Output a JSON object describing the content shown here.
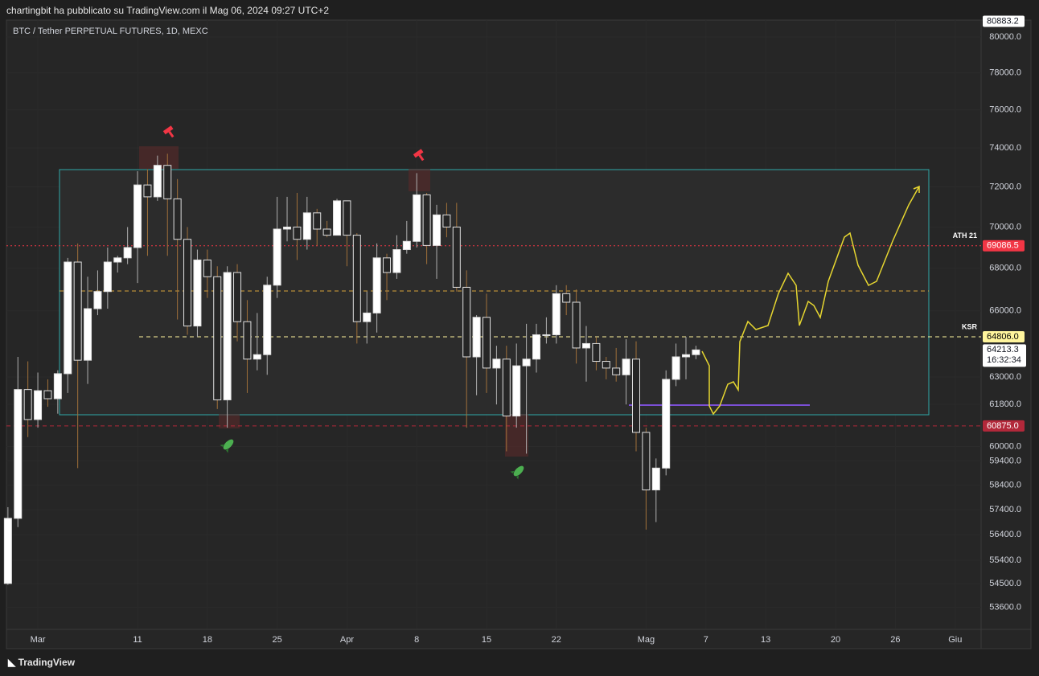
{
  "header": "chartingbit ha pubblicato su TradingView.com il Mag 06, 2024 09:27 UTC+2",
  "footer_logo": "TradingView",
  "chart_data": {
    "type": "candlestick",
    "title": "BTC / Tether PERPETUAL FUTURES, 1D, MEXC",
    "x": [
      -3,
      -2,
      -1,
      0,
      1,
      2,
      3,
      4,
      5,
      6,
      7,
      8,
      9,
      10,
      11,
      12,
      13,
      14,
      15,
      16,
      17,
      18,
      19,
      20,
      21,
      22,
      23,
      24,
      25,
      26,
      27,
      28,
      29,
      30,
      31,
      32,
      33,
      34,
      35,
      36,
      37,
      38,
      39,
      40,
      41,
      42,
      43,
      44,
      45,
      46,
      47,
      48,
      49,
      50,
      51,
      52,
      53,
      54,
      55,
      56,
      57,
      58,
      59,
      60,
      61,
      62,
      63,
      64,
      65,
      66
    ],
    "open": [
      54500,
      57050,
      62450,
      61150,
      62400,
      62050,
      63150,
      68300,
      63750,
      66100,
      66900,
      68300,
      68500,
      69000,
      72100,
      71500,
      73100,
      71400,
      69400,
      65300,
      68400,
      67600,
      62000,
      67800,
      65500,
      63800,
      64000,
      67200,
      69900,
      70000,
      69400,
      70700,
      69900,
      69600,
      71300,
      69600,
      65500,
      65900,
      68500,
      67800,
      68900,
      69300,
      71600,
      69100,
      70600,
      70000,
      67100,
      63900,
      65700,
      63400,
      63800,
      61300,
      63500,
      63800,
      64900,
      64900,
      66800,
      66400,
      64300,
      64500,
      63700,
      63400,
      63100,
      63800,
      60600,
      58200,
      59100,
      62900,
      63900,
      64000
    ],
    "high": [
      57500,
      63900,
      63700,
      63200,
      62900,
      63300,
      68500,
      69200,
      67600,
      67900,
      69000,
      68600,
      70000,
      72800,
      72900,
      73600,
      73700,
      72400,
      70000,
      68900,
      68900,
      68100,
      68100,
      68200,
      66500,
      65900,
      67600,
      71500,
      71500,
      71700,
      71500,
      70900,
      70300,
      71400,
      71300,
      69700,
      66900,
      69200,
      68700,
      69600,
      70300,
      72700,
      71700,
      71100,
      71200,
      71200,
      67900,
      65800,
      66800,
      64400,
      64400,
      64500,
      65400,
      65400,
      65700,
      67200,
      67200,
      67000,
      65300,
      64800,
      63900,
      64300,
      64700,
      64600,
      60800,
      59500,
      63300,
      64500,
      64800,
      64400
    ],
    "low": [
      54450,
      56700,
      60400,
      60800,
      61700,
      61400,
      62300,
      59100,
      62700,
      65800,
      66100,
      67800,
      68200,
      67300,
      68600,
      71300,
      68600,
      65600,
      64900,
      64800,
      66600,
      61600,
      60800,
      64600,
      62300,
      63300,
      63100,
      66600,
      69300,
      68400,
      68900,
      69100,
      69500,
      69600,
      68100,
      64500,
      64500,
      65000,
      66500,
      67500,
      68700,
      69000,
      68200,
      67500,
      69500,
      66900,
      60800,
      62200,
      62300,
      61800,
      59800,
      60800,
      59700,
      63200,
      64500,
      64500,
      65800,
      63600,
      62800,
      63300,
      62900,
      62800,
      61800,
      59800,
      56600,
      56900,
      58800,
      62600,
      62900,
      63800
    ],
    "close": [
      57050,
      62450,
      61150,
      62400,
      62050,
      63150,
      68300,
      63750,
      66100,
      66900,
      68300,
      68500,
      69000,
      72100,
      71500,
      73100,
      71400,
      69400,
      65300,
      68400,
      67600,
      62000,
      67800,
      65500,
      63800,
      64000,
      67200,
      69900,
      70000,
      69400,
      70700,
      69900,
      69600,
      71300,
      69600,
      65500,
      65900,
      68500,
      67800,
      68900,
      69300,
      71600,
      69100,
      70600,
      70000,
      67100,
      63900,
      65700,
      63400,
      63800,
      61300,
      63500,
      63800,
      64900,
      64900,
      66800,
      66400,
      64300,
      64500,
      63700,
      63400,
      63100,
      63800,
      60600,
      58200,
      59100,
      62900,
      63900,
      64000,
      64213.3
    ],
    "up_color": "#ffffff",
    "down_color": "#262626",
    "outline_color": "#e0e0e0",
    "wick_up_color": "#b0b0b0",
    "wick_down_color": "#a0703a",
    "log_scale": true,
    "grid": true,
    "xlim": [
      -3.15,
      94.6
    ],
    "xticks": [
      {
        "value": 0,
        "label": "Mar"
      },
      {
        "value": 10,
        "label": "11"
      },
      {
        "value": 17,
        "label": "18"
      },
      {
        "value": 24,
        "label": "25"
      },
      {
        "value": 31,
        "label": "Apr"
      },
      {
        "value": 38,
        "label": "8"
      },
      {
        "value": 45,
        "label": "15"
      },
      {
        "value": 52,
        "label": "22"
      },
      {
        "value": 61,
        "label": "Mag"
      },
      {
        "value": 67,
        "label": "7"
      },
      {
        "value": 73,
        "label": "13"
      },
      {
        "value": 80,
        "label": "20"
      },
      {
        "value": 86,
        "label": "26"
      },
      {
        "value": 92,
        "label": "Giu"
      }
    ],
    "ylim": [
      52800,
      80950
    ],
    "yticks": [
      {
        "value": 80000,
        "label": "80000.0"
      },
      {
        "value": 78000,
        "label": "78000.0"
      },
      {
        "value": 76000,
        "label": "76000.0"
      },
      {
        "value": 74000,
        "label": "74000.0"
      },
      {
        "value": 72000,
        "label": "72000.0"
      },
      {
        "value": 70000,
        "label": "70000.0"
      },
      {
        "value": 68000,
        "label": "68000.0"
      },
      {
        "value": 66000,
        "label": "66000.0"
      },
      {
        "value": 63000,
        "label": "63000.0"
      },
      {
        "value": 61800,
        "label": "61800.0"
      },
      {
        "value": 60000,
        "label": "60000.0"
      },
      {
        "value": 59400,
        "label": "59400.0"
      },
      {
        "value": 58400,
        "label": "58400.0"
      },
      {
        "value": 57400,
        "label": "57400.0"
      },
      {
        "value": 56400,
        "label": "56400.0"
      },
      {
        "value": 55400,
        "label": "55400.0"
      },
      {
        "value": 54500,
        "label": "54500.0"
      },
      {
        "value": 53600,
        "label": "53600.0"
      }
    ],
    "top_label": {
      "value": 80883.2,
      "label": "80883.2"
    },
    "levels": [
      {
        "name": "ATH 21",
        "value": 69086.5,
        "label": "69086.5",
        "color": "#f23645",
        "text_color": "#ffffff",
        "dash": "2 3"
      },
      {
        "name": "KSR",
        "value": 64806,
        "label": "64806.0",
        "color": "#fff59d",
        "text_color": "#000000",
        "dash": "5 4"
      },
      {
        "value": 60875,
        "label": "60875.0",
        "color": "#b2283a",
        "text_color": "#ffffff",
        "dash": "5 4"
      }
    ],
    "last_price": {
      "value": 64213.3,
      "label": "64213.3",
      "countdown": "16:32:34"
    }
  }
}
